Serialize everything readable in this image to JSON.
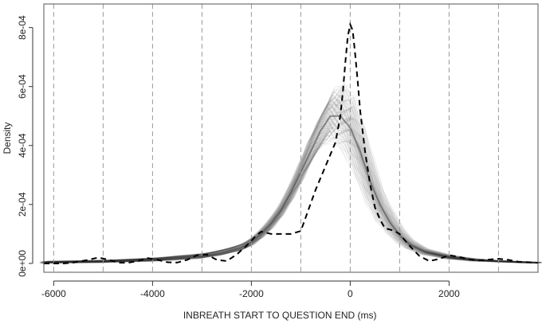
{
  "chart_data": {
    "type": "line",
    "title": "",
    "xlabel": "INBREATH START TO QUESTION END (ms)",
    "ylabel": "Density",
    "xlim": [
      -6200,
      3800
    ],
    "ylim": [
      -3e-05,
      0.00088
    ],
    "x_ticks": [
      -6000,
      -4000,
      -2000,
      0,
      2000
    ],
    "x_tick_labels": [
      "-6000",
      "-4000",
      "-2000",
      "0",
      "2000"
    ],
    "y_ticks": [
      0,
      0.0002,
      0.0004,
      0.0006,
      0.0008
    ],
    "y_tick_labels": [
      "0e+00",
      "2e-04",
      "4e-04",
      "6e-04",
      "8e-04"
    ],
    "vertical_reference_lines": [
      -6000,
      -5000,
      -4000,
      -3000,
      -2000,
      -1000,
      0,
      1000,
      2000,
      3000
    ],
    "grid": false,
    "legend": "none",
    "series": [
      {
        "style": "dashed",
        "color": "#000000",
        "x": [
          -6200,
          -5800,
          -5600,
          -5300,
          -5100,
          -4900,
          -4700,
          -4500,
          -4300,
          -4100,
          -3900,
          -3700,
          -3500,
          -3300,
          -3100,
          -2900,
          -2700,
          -2500,
          -2300,
          -2100,
          -1900,
          -1800,
          -1600,
          -1400,
          -1200,
          -1000,
          -850,
          -700,
          -600,
          -500,
          -400,
          -300,
          -200,
          -150,
          -100,
          -50,
          0,
          50,
          100,
          150,
          200,
          300,
          400,
          500,
          600,
          700,
          800,
          900,
          1000,
          1100,
          1200,
          1400,
          1600,
          1800,
          2000,
          2200,
          2400,
          2600,
          2800,
          3000,
          3200,
          3400,
          3600,
          3800
        ],
        "y": [
          0,
          0,
          3e-06,
          1.2e-05,
          2e-05,
          1.3e-05,
          3e-06,
          2e-06,
          8e-06,
          1.8e-05,
          1.2e-05,
          4e-06,
          3e-06,
          1.2e-05,
          2.8e-05,
          3e-05,
          1.2e-05,
          8e-06,
          3e-05,
          6e-05,
          9.5e-05,
          0.000108,
          0.0001,
          0.0001,
          0.0001,
          0.00011,
          0.00018,
          0.00025,
          0.00029,
          0.00033,
          0.00037,
          0.00041,
          0.0005,
          0.00058,
          0.00068,
          0.00077,
          0.00081,
          0.00079,
          0.00071,
          0.00062,
          0.00052,
          0.00038,
          0.00027,
          0.00019,
          0.00015,
          0.00012,
          0.000115,
          0.00011,
          0.0001,
          8e-05,
          6e-05,
          2.5e-05,
          8e-06,
          1.5e-05,
          2.8e-05,
          2.2e-05,
          1.4e-05,
          1e-05,
          1.3e-05,
          1.6e-05,
          1.2e-05,
          6e-06,
          4e-06,
          2e-06
        ]
      }
    ],
    "bootstrap_band": {
      "description_shown": "many overlapping grey density curves",
      "color": "#222222",
      "x": [
        -6200,
        -5000,
        -4000,
        -3500,
        -3000,
        -2600,
        -2200,
        -2000,
        -1800,
        -1600,
        -1400,
        -1200,
        -1000,
        -800,
        -600,
        -400,
        -200,
        0,
        200,
        400,
        600,
        800,
        1000,
        1200,
        1500,
        2000,
        2500,
        3000,
        3500,
        3800
      ],
      "lower": [
        0,
        2e-06,
        6e-06,
        1e-05,
        1.5e-05,
        2.5e-05,
        4e-05,
        5.5e-05,
        8e-05,
        0.00011,
        0.00015,
        0.0002,
        0.00026,
        0.00032,
        0.00037,
        0.0004,
        0.00039,
        0.00035,
        0.00028,
        0.0002,
        0.00014,
        0.0001,
        7e-05,
        5e-05,
        3e-05,
        1.5e-05,
        8e-06,
        5e-06,
        2e-06,
        1e-06
      ],
      "upper": [
        8e-06,
        1.2e-05,
        2e-05,
        2.8e-05,
        3.6e-05,
        5e-05,
        7e-05,
        9e-05,
        0.00012,
        0.00016,
        0.00021,
        0.00028,
        0.00036,
        0.00045,
        0.00053,
        0.0006,
        0.00062,
        0.00058,
        0.00048,
        0.00036,
        0.00025,
        0.00018,
        0.00012,
        8e-05,
        5e-05,
        2.8e-05,
        1.6e-05,
        1e-05,
        6e-06,
        4e-06
      ],
      "center": [
        4e-06,
        6e-06,
        1.2e-05,
        1.8e-05,
        2.4e-05,
        3.6e-05,
        5.4e-05,
        7.2e-05,
        0.0001,
        0.000135,
        0.00018,
        0.00024,
        0.00031,
        0.00038,
        0.00045,
        0.0005,
        0.0005,
        0.00046,
        0.00038,
        0.00028,
        0.0002,
        0.00014,
        9.5e-05,
        6.5e-05,
        4e-05,
        2e-05,
        1.2e-05,
        7e-06,
        4e-06,
        2e-06
      ]
    }
  }
}
